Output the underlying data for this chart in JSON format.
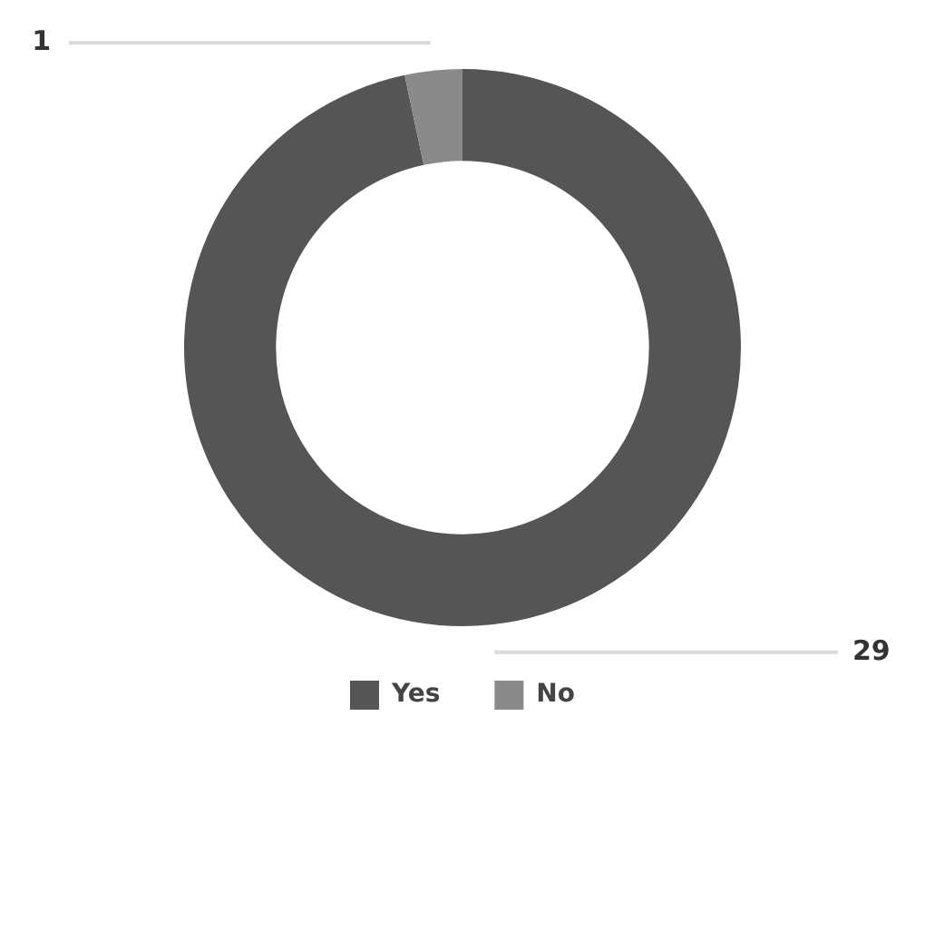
{
  "chart_data": {
    "type": "donut",
    "categories": [
      "Yes",
      "No"
    ],
    "values": [
      29,
      1
    ],
    "colors": [
      "#555555",
      "#8a8a8a"
    ],
    "data_labels": true,
    "legend": "bottom"
  }
}
